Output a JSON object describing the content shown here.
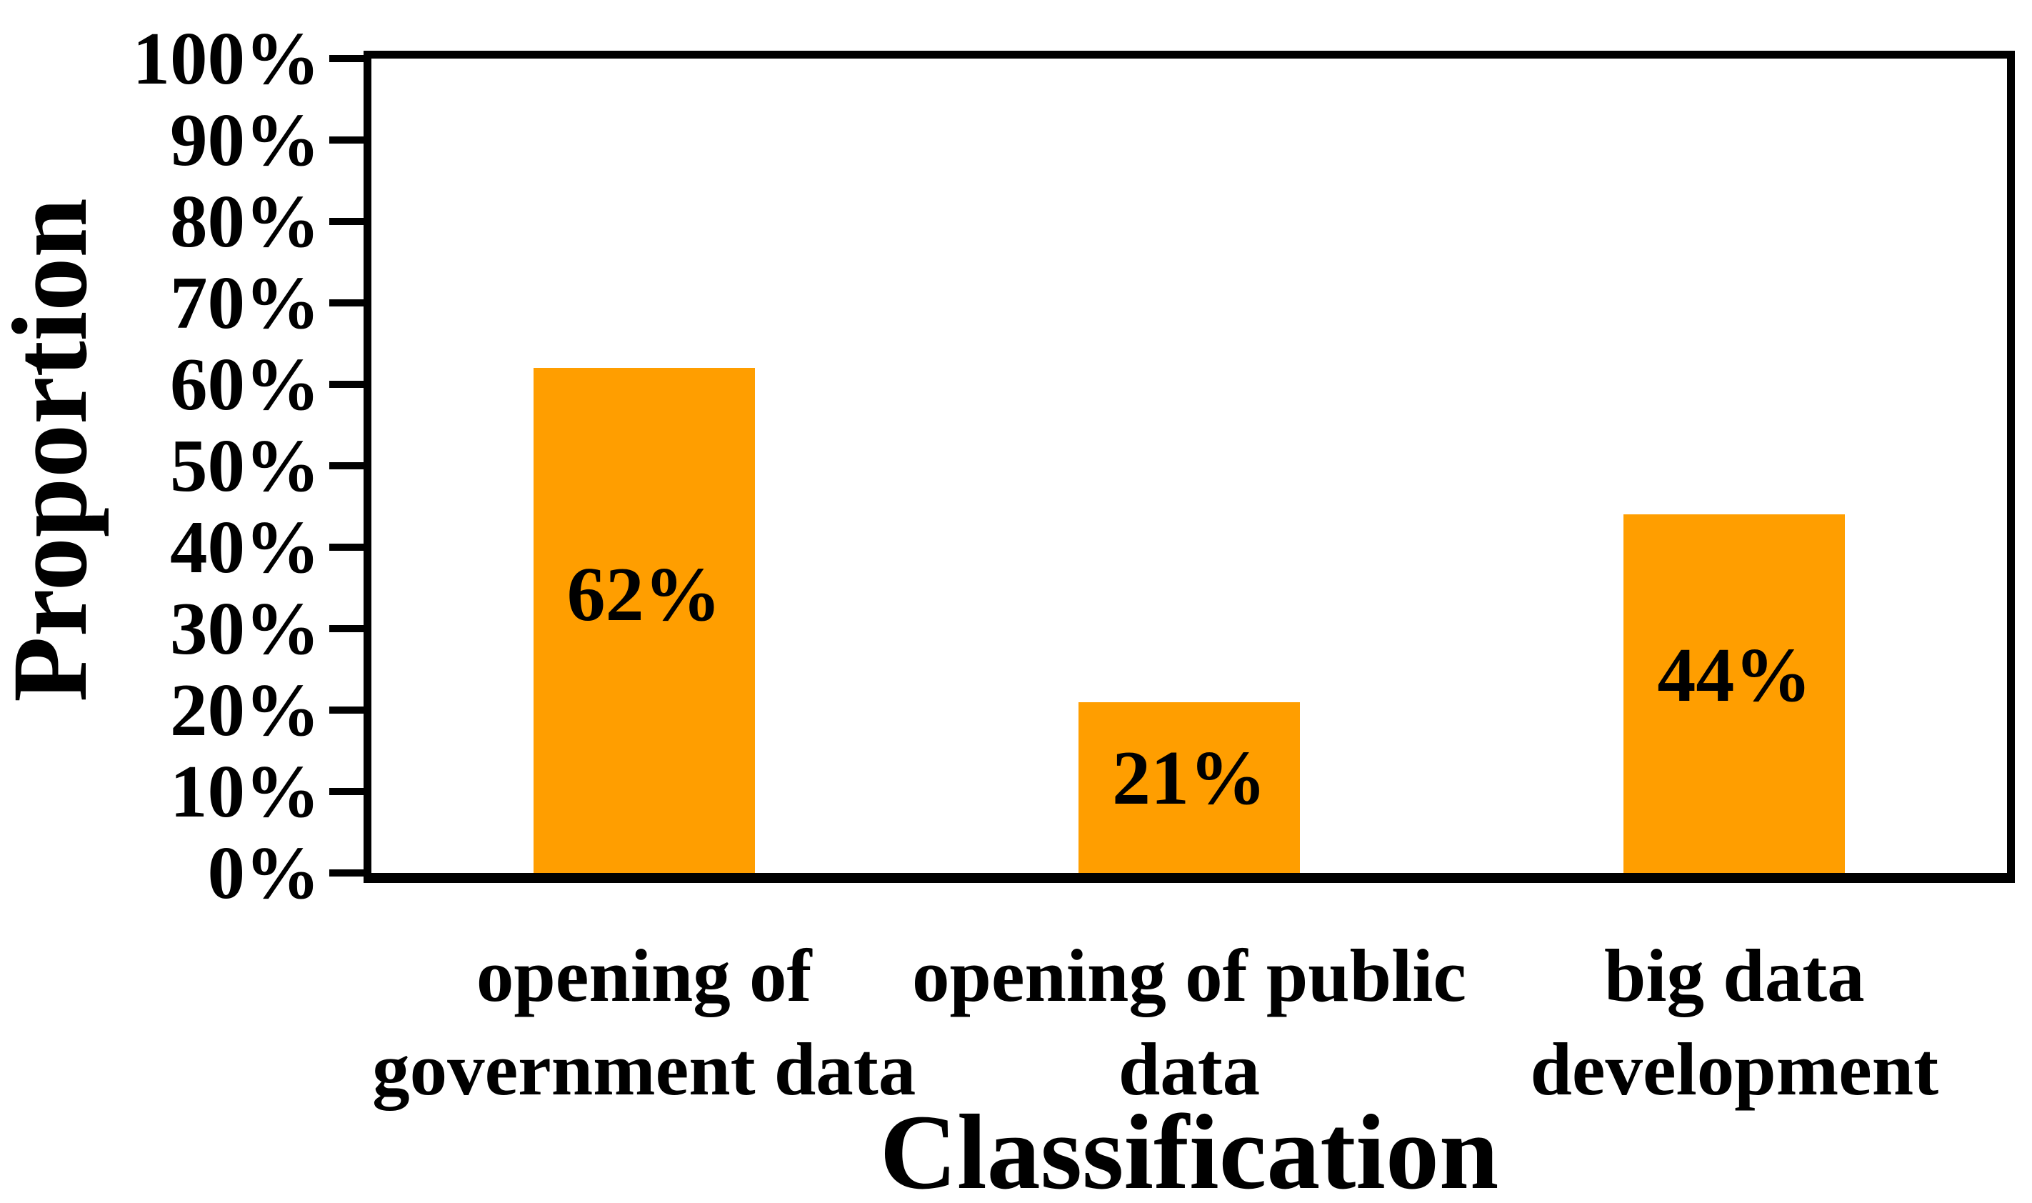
{
  "chart_data": {
    "type": "bar",
    "title": "",
    "xlabel": "Classification",
    "ylabel": "Proportion",
    "categories": [
      "opening of government data",
      "opening of public data",
      "big data development"
    ],
    "category_line_breaks": [
      [
        "opening of",
        "government data"
      ],
      [
        "opening of public",
        "data"
      ],
      [
        "big data",
        "development"
      ]
    ],
    "values": [
      62,
      21,
      44
    ],
    "data_labels": [
      "62%",
      "21%",
      "44%"
    ],
    "yticks": [
      "0%",
      "10%",
      "20%",
      "30%",
      "40%",
      "50%",
      "60%",
      "70%",
      "80%",
      "90%",
      "100%"
    ],
    "ytick_values": [
      0,
      10,
      20,
      30,
      40,
      50,
      60,
      70,
      80,
      90,
      100
    ],
    "ylim": [
      0,
      100
    ],
    "grid": false,
    "legend": "none",
    "bar_color": "#FF9E00",
    "axis_color": "#000000",
    "text_color": "#000000"
  }
}
